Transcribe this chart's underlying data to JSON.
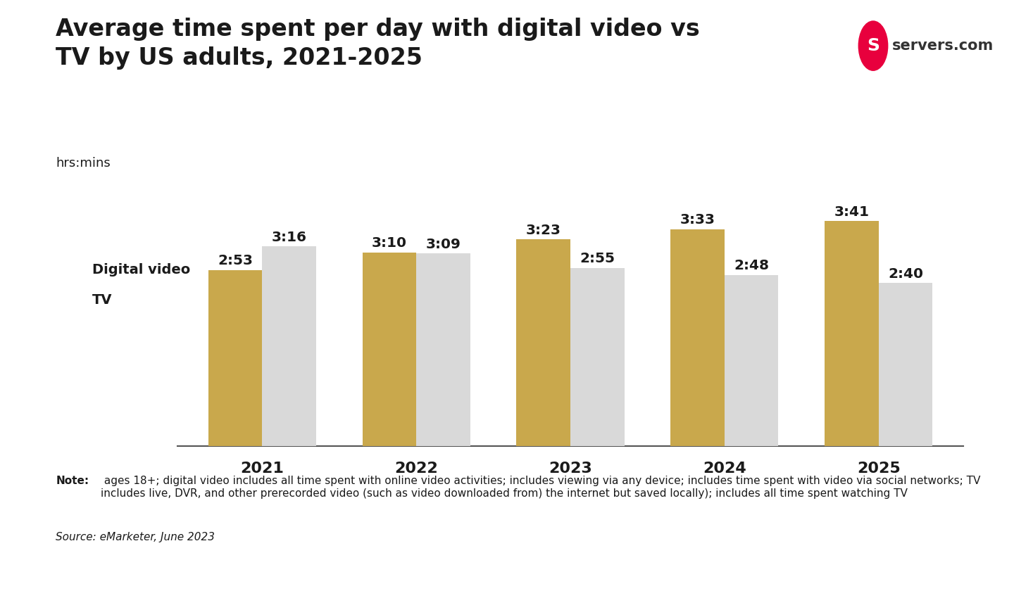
{
  "title": "Average time spent per day with digital video vs\nTV by US adults, 2021-2025",
  "subtitle": "hrs:mins",
  "years": [
    "2021",
    "2022",
    "2023",
    "2024",
    "2025"
  ],
  "digital_video": [
    2.883,
    3.167,
    3.383,
    3.55,
    3.683
  ],
  "tv": [
    3.267,
    3.15,
    2.917,
    2.8,
    2.667
  ],
  "digital_video_labels": [
    "2:53",
    "3:10",
    "3:23",
    "3:33",
    "3:41"
  ],
  "tv_labels": [
    "3:16",
    "3:09",
    "2:55",
    "2:48",
    "2:40"
  ],
  "digital_video_color": "#C9A84C",
  "tv_color": "#D9D9D9",
  "background_color": "#FFFFFF",
  "text_color": "#1A1A1A",
  "note_bold": "Note:",
  "note_text": " ages 18+; digital video includes all time spent with online video activities; includes viewing via any device; includes time spent with video via social networks; TV includes live, DVR, and other prerecorded video (such as video downloaded from) the internet but saved locally); includes all time spent watching TV",
  "source_text": "Source: eMarketer, June 2023",
  "bar_width": 0.35,
  "ylim": [
    0,
    4.3
  ],
  "logo_color": "#E8003D"
}
